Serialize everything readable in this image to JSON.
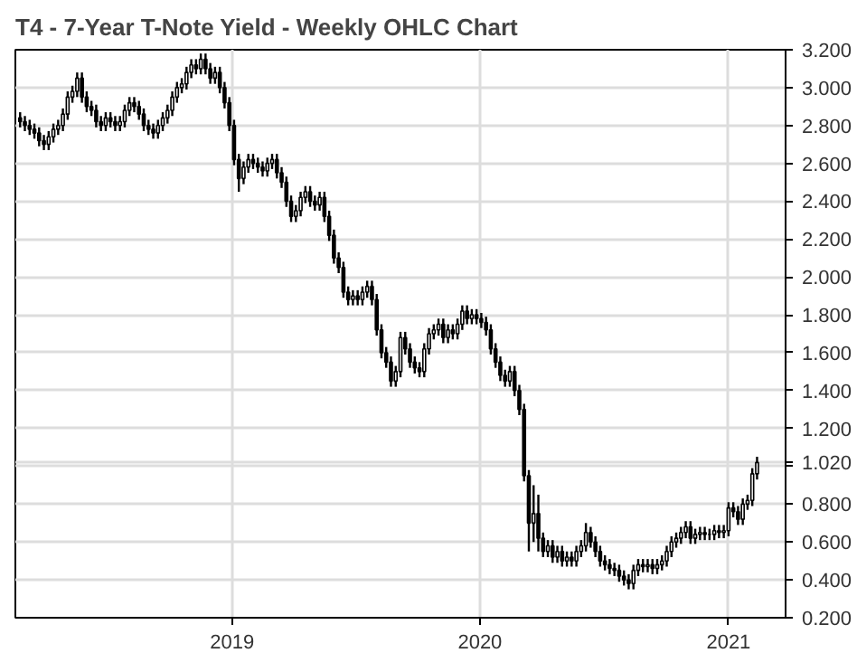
{
  "chart_data": {
    "type": "candlestick",
    "title": "T4 - 7-Year T-Note Yield - Weekly OHLC Chart",
    "x": [
      "2018-02-23",
      "2018-03-02",
      "2018-03-09",
      "2018-03-16",
      "2018-03-23",
      "2018-03-30",
      "2018-04-06",
      "2018-04-13",
      "2018-04-20",
      "2018-04-27",
      "2018-05-04",
      "2018-05-11",
      "2018-05-18",
      "2018-05-25",
      "2018-06-01",
      "2018-06-08",
      "2018-06-15",
      "2018-06-22",
      "2018-06-29",
      "2018-07-06",
      "2018-07-13",
      "2018-07-20",
      "2018-07-27",
      "2018-08-03",
      "2018-08-10",
      "2018-08-17",
      "2018-08-24",
      "2018-08-31",
      "2018-09-07",
      "2018-09-14",
      "2018-09-21",
      "2018-09-28",
      "2018-10-05",
      "2018-10-12",
      "2018-10-19",
      "2018-10-26",
      "2018-11-02",
      "2018-11-09",
      "2018-11-16",
      "2018-11-23",
      "2018-11-30",
      "2018-12-07",
      "2018-12-14",
      "2018-12-21",
      "2018-12-28",
      "2019-01-04",
      "2019-01-11",
      "2019-01-18",
      "2019-01-25",
      "2019-02-01",
      "2019-02-08",
      "2019-02-15",
      "2019-02-22",
      "2019-03-01",
      "2019-03-08",
      "2019-03-15",
      "2019-03-22",
      "2019-03-29",
      "2019-04-05",
      "2019-04-12",
      "2019-04-19",
      "2019-04-26",
      "2019-05-03",
      "2019-05-10",
      "2019-05-17",
      "2019-05-24",
      "2019-05-31",
      "2019-06-07",
      "2019-06-14",
      "2019-06-21",
      "2019-06-28",
      "2019-07-05",
      "2019-07-12",
      "2019-07-19",
      "2019-07-26",
      "2019-08-02",
      "2019-08-09",
      "2019-08-16",
      "2019-08-23",
      "2019-08-30",
      "2019-09-06",
      "2019-09-13",
      "2019-09-20",
      "2019-09-27",
      "2019-10-04",
      "2019-10-11",
      "2019-10-18",
      "2019-10-25",
      "2019-11-01",
      "2019-11-08",
      "2019-11-15",
      "2019-11-22",
      "2019-11-29",
      "2019-12-06",
      "2019-12-13",
      "2019-12-20",
      "2019-12-27",
      "2020-01-03",
      "2020-01-10",
      "2020-01-17",
      "2020-01-24",
      "2020-01-31",
      "2020-02-07",
      "2020-02-14",
      "2020-02-21",
      "2020-02-28",
      "2020-03-06",
      "2020-03-13",
      "2020-03-20",
      "2020-03-27",
      "2020-04-03",
      "2020-04-10",
      "2020-04-17",
      "2020-04-24",
      "2020-05-01",
      "2020-05-08",
      "2020-05-15",
      "2020-05-22",
      "2020-05-29",
      "2020-06-05",
      "2020-06-12",
      "2020-06-19",
      "2020-06-26",
      "2020-07-03",
      "2020-07-10",
      "2020-07-17",
      "2020-07-24",
      "2020-07-31",
      "2020-08-07",
      "2020-08-14",
      "2020-08-21",
      "2020-08-28",
      "2020-09-04",
      "2020-09-11",
      "2020-09-18",
      "2020-09-25",
      "2020-10-02",
      "2020-10-09",
      "2020-10-16",
      "2020-10-23",
      "2020-10-30",
      "2020-11-06",
      "2020-11-13",
      "2020-11-20",
      "2020-11-27",
      "2020-12-04",
      "2020-12-11",
      "2020-12-18",
      "2020-12-25",
      "2021-01-01",
      "2021-01-08",
      "2021-01-15",
      "2021-01-22",
      "2021-01-29",
      "2021-02-05",
      "2021-02-12"
    ],
    "ohlc": [
      [
        2.84,
        2.87,
        2.79,
        2.82
      ],
      [
        2.82,
        2.85,
        2.77,
        2.8
      ],
      [
        2.8,
        2.83,
        2.75,
        2.78
      ],
      [
        2.78,
        2.81,
        2.73,
        2.76
      ],
      [
        2.76,
        2.79,
        2.69,
        2.72
      ],
      [
        2.72,
        2.75,
        2.67,
        2.7
      ],
      [
        2.7,
        2.77,
        2.67,
        2.74
      ],
      [
        2.74,
        2.81,
        2.71,
        2.78
      ],
      [
        2.78,
        2.83,
        2.75,
        2.8
      ],
      [
        2.8,
        2.89,
        2.77,
        2.86
      ],
      [
        2.86,
        2.98,
        2.83,
        2.95
      ],
      [
        2.95,
        3.01,
        2.92,
        2.98
      ],
      [
        2.98,
        3.08,
        2.95,
        3.05
      ],
      [
        3.05,
        3.08,
        2.92,
        2.95
      ],
      [
        2.95,
        2.98,
        2.87,
        2.9
      ],
      [
        2.9,
        2.93,
        2.85,
        2.88
      ],
      [
        2.88,
        2.91,
        2.79,
        2.82
      ],
      [
        2.82,
        2.85,
        2.77,
        2.8
      ],
      [
        2.8,
        2.87,
        2.77,
        2.84
      ],
      [
        2.84,
        2.87,
        2.79,
        2.82
      ],
      [
        2.82,
        2.85,
        2.77,
        2.8
      ],
      [
        2.8,
        2.85,
        2.77,
        2.82
      ],
      [
        2.82,
        2.91,
        2.79,
        2.88
      ],
      [
        2.88,
        2.95,
        2.85,
        2.92
      ],
      [
        2.92,
        2.95,
        2.87,
        2.9
      ],
      [
        2.9,
        2.93,
        2.83,
        2.86
      ],
      [
        2.86,
        2.89,
        2.77,
        2.8
      ],
      [
        2.8,
        2.83,
        2.75,
        2.78
      ],
      [
        2.78,
        2.81,
        2.73,
        2.76
      ],
      [
        2.76,
        2.83,
        2.73,
        2.8
      ],
      [
        2.8,
        2.87,
        2.77,
        2.84
      ],
      [
        2.84,
        2.91,
        2.81,
        2.88
      ],
      [
        2.88,
        2.98,
        2.85,
        2.95
      ],
      [
        2.95,
        3.03,
        2.92,
        3.0
      ],
      [
        3.0,
        3.05,
        2.97,
        3.02
      ],
      [
        3.02,
        3.11,
        2.99,
        3.08
      ],
      [
        3.08,
        3.15,
        3.05,
        3.12
      ],
      [
        3.12,
        3.15,
        3.07,
        3.1
      ],
      [
        3.1,
        3.18,
        3.07,
        3.15
      ],
      [
        3.15,
        3.18,
        3.07,
        3.1
      ],
      [
        3.1,
        3.13,
        3.02,
        3.05
      ],
      [
        3.05,
        3.11,
        3.02,
        3.08
      ],
      [
        3.08,
        3.11,
        2.97,
        3.0
      ],
      [
        3.0,
        3.03,
        2.89,
        2.92
      ],
      [
        2.92,
        2.95,
        2.77,
        2.8
      ],
      [
        2.8,
        2.83,
        2.59,
        2.62
      ],
      [
        2.62,
        2.65,
        2.45,
        2.52
      ],
      [
        2.52,
        2.61,
        2.49,
        2.58
      ],
      [
        2.58,
        2.65,
        2.55,
        2.62
      ],
      [
        2.62,
        2.65,
        2.57,
        2.6
      ],
      [
        2.6,
        2.63,
        2.55,
        2.58
      ],
      [
        2.58,
        2.61,
        2.53,
        2.56
      ],
      [
        2.56,
        2.63,
        2.53,
        2.6
      ],
      [
        2.6,
        2.65,
        2.57,
        2.62
      ],
      [
        2.62,
        2.65,
        2.52,
        2.55
      ],
      [
        2.55,
        2.58,
        2.47,
        2.5
      ],
      [
        2.5,
        2.53,
        2.37,
        2.4
      ],
      [
        2.4,
        2.43,
        2.29,
        2.32
      ],
      [
        2.32,
        2.38,
        2.29,
        2.35
      ],
      [
        2.35,
        2.45,
        2.32,
        2.42
      ],
      [
        2.42,
        2.48,
        2.39,
        2.45
      ],
      [
        2.45,
        2.48,
        2.37,
        2.4
      ],
      [
        2.4,
        2.43,
        2.35,
        2.38
      ],
      [
        2.38,
        2.45,
        2.35,
        2.42
      ],
      [
        2.42,
        2.45,
        2.29,
        2.32
      ],
      [
        2.32,
        2.35,
        2.19,
        2.22
      ],
      [
        2.22,
        2.25,
        2.07,
        2.1
      ],
      [
        2.1,
        2.13,
        2.02,
        2.05
      ],
      [
        2.05,
        2.08,
        1.89,
        1.92
      ],
      [
        1.92,
        1.95,
        1.85,
        1.88
      ],
      [
        1.88,
        1.93,
        1.85,
        1.9
      ],
      [
        1.9,
        1.93,
        1.85,
        1.88
      ],
      [
        1.88,
        1.95,
        1.85,
        1.92
      ],
      [
        1.92,
        1.98,
        1.89,
        1.95
      ],
      [
        1.95,
        1.98,
        1.85,
        1.88
      ],
      [
        1.88,
        1.91,
        1.69,
        1.72
      ],
      [
        1.72,
        1.75,
        1.57,
        1.6
      ],
      [
        1.6,
        1.63,
        1.52,
        1.55
      ],
      [
        1.55,
        1.58,
        1.42,
        1.45
      ],
      [
        1.45,
        1.53,
        1.42,
        1.5
      ],
      [
        1.5,
        1.71,
        1.47,
        1.68
      ],
      [
        1.68,
        1.71,
        1.59,
        1.62
      ],
      [
        1.62,
        1.65,
        1.52,
        1.55
      ],
      [
        1.55,
        1.58,
        1.49,
        1.52
      ],
      [
        1.52,
        1.55,
        1.47,
        1.5
      ],
      [
        1.5,
        1.65,
        1.47,
        1.62
      ],
      [
        1.62,
        1.73,
        1.59,
        1.7
      ],
      [
        1.7,
        1.75,
        1.67,
        1.72
      ],
      [
        1.72,
        1.78,
        1.69,
        1.75
      ],
      [
        1.75,
        1.78,
        1.65,
        1.68
      ],
      [
        1.68,
        1.75,
        1.65,
        1.72
      ],
      [
        1.72,
        1.75,
        1.67,
        1.7
      ],
      [
        1.7,
        1.78,
        1.67,
        1.75
      ],
      [
        1.75,
        1.85,
        1.72,
        1.82
      ],
      [
        1.82,
        1.85,
        1.75,
        1.78
      ],
      [
        1.78,
        1.83,
        1.75,
        1.8
      ],
      [
        1.8,
        1.83,
        1.75,
        1.78
      ],
      [
        1.78,
        1.81,
        1.73,
        1.76
      ],
      [
        1.76,
        1.79,
        1.69,
        1.72
      ],
      [
        1.72,
        1.75,
        1.59,
        1.62
      ],
      [
        1.62,
        1.65,
        1.52,
        1.55
      ],
      [
        1.55,
        1.58,
        1.45,
        1.48
      ],
      [
        1.48,
        1.51,
        1.42,
        1.45
      ],
      [
        1.45,
        1.53,
        1.42,
        1.5
      ],
      [
        1.5,
        1.53,
        1.37,
        1.4
      ],
      [
        1.4,
        1.43,
        1.27,
        1.3
      ],
      [
        1.3,
        1.33,
        0.92,
        0.95
      ],
      [
        0.95,
        0.98,
        0.55,
        0.7
      ],
      [
        0.7,
        0.9,
        0.6,
        0.75
      ],
      [
        0.75,
        0.85,
        0.55,
        0.62
      ],
      [
        0.62,
        0.65,
        0.52,
        0.55
      ],
      [
        0.55,
        0.61,
        0.52,
        0.58
      ],
      [
        0.58,
        0.61,
        0.49,
        0.52
      ],
      [
        0.52,
        0.58,
        0.49,
        0.55
      ],
      [
        0.55,
        0.58,
        0.47,
        0.5
      ],
      [
        0.5,
        0.55,
        0.47,
        0.52
      ],
      [
        0.52,
        0.55,
        0.47,
        0.5
      ],
      [
        0.5,
        0.58,
        0.47,
        0.55
      ],
      [
        0.55,
        0.61,
        0.52,
        0.58
      ],
      [
        0.58,
        0.7,
        0.55,
        0.65
      ],
      [
        0.65,
        0.68,
        0.57,
        0.6
      ],
      [
        0.6,
        0.63,
        0.52,
        0.55
      ],
      [
        0.55,
        0.58,
        0.47,
        0.5
      ],
      [
        0.5,
        0.53,
        0.45,
        0.48
      ],
      [
        0.48,
        0.51,
        0.43,
        0.46
      ],
      [
        0.46,
        0.49,
        0.42,
        0.45
      ],
      [
        0.45,
        0.48,
        0.39,
        0.42
      ],
      [
        0.42,
        0.45,
        0.37,
        0.4
      ],
      [
        0.4,
        0.43,
        0.35,
        0.38
      ],
      [
        0.38,
        0.48,
        0.35,
        0.45
      ],
      [
        0.45,
        0.51,
        0.42,
        0.48
      ],
      [
        0.48,
        0.51,
        0.44,
        0.47
      ],
      [
        0.47,
        0.51,
        0.44,
        0.48
      ],
      [
        0.48,
        0.51,
        0.43,
        0.46
      ],
      [
        0.46,
        0.51,
        0.43,
        0.48
      ],
      [
        0.48,
        0.53,
        0.45,
        0.5
      ],
      [
        0.5,
        0.58,
        0.47,
        0.55
      ],
      [
        0.55,
        0.63,
        0.52,
        0.6
      ],
      [
        0.6,
        0.65,
        0.57,
        0.62
      ],
      [
        0.62,
        0.68,
        0.59,
        0.65
      ],
      [
        0.65,
        0.71,
        0.62,
        0.68
      ],
      [
        0.68,
        0.71,
        0.59,
        0.62
      ],
      [
        0.62,
        0.67,
        0.59,
        0.64
      ],
      [
        0.64,
        0.68,
        0.61,
        0.65
      ],
      [
        0.65,
        0.68,
        0.61,
        0.64
      ],
      [
        0.64,
        0.67,
        0.61,
        0.64
      ],
      [
        0.64,
        0.69,
        0.61,
        0.66
      ],
      [
        0.66,
        0.69,
        0.62,
        0.65
      ],
      [
        0.65,
        0.69,
        0.62,
        0.66
      ],
      [
        0.66,
        0.81,
        0.63,
        0.78
      ],
      [
        0.78,
        0.81,
        0.73,
        0.76
      ],
      [
        0.76,
        0.79,
        0.69,
        0.72
      ],
      [
        0.72,
        0.83,
        0.69,
        0.8
      ],
      [
        0.8,
        0.85,
        0.77,
        0.82
      ],
      [
        0.82,
        0.99,
        0.79,
        0.96
      ],
      [
        0.96,
        1.05,
        0.93,
        1.02
      ]
    ],
    "color": "#000000",
    "xlim": [
      "2018-02-16",
      "2021-03-26"
    ],
    "xticks": [
      {
        "value": "2019-01-01",
        "label": "2019"
      },
      {
        "value": "2020-01-01",
        "label": "2020"
      },
      {
        "value": "2021-01-01",
        "label": "2021"
      }
    ],
    "ylim": [
      0.2,
      3.2
    ],
    "yticks": [
      {
        "value": 0.2,
        "label": "0.200"
      },
      {
        "value": 0.4,
        "label": "0.400"
      },
      {
        "value": 0.6,
        "label": "0.600"
      },
      {
        "value": 0.8,
        "label": "0.800"
      },
      {
        "value": 1.0,
        "label": null
      },
      {
        "value": 1.02,
        "label": "1.020"
      },
      {
        "value": 1.2,
        "label": "1.200"
      },
      {
        "value": 1.4,
        "label": "1.400"
      },
      {
        "value": 1.6,
        "label": "1.600"
      },
      {
        "value": 1.8,
        "label": "1.800"
      },
      {
        "value": 2.0,
        "label": "2.000"
      },
      {
        "value": 2.2,
        "label": "2.200"
      },
      {
        "value": 2.4,
        "label": "2.400"
      },
      {
        "value": 2.6,
        "label": "2.600"
      },
      {
        "value": 2.8,
        "label": "2.800"
      },
      {
        "value": 3.0,
        "label": "3.000"
      },
      {
        "value": 3.2,
        "label": "3.200"
      }
    ],
    "grid": true
  }
}
